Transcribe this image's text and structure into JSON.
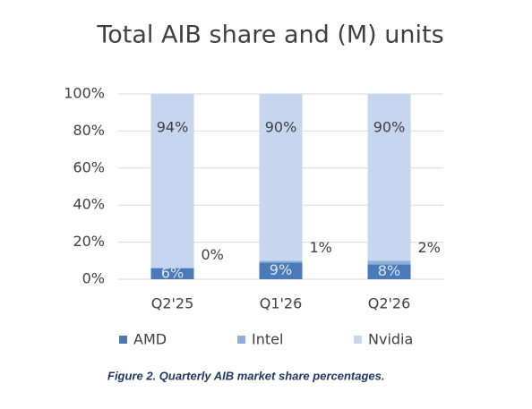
{
  "chart_data": {
    "type": "stacked_bar",
    "title": "Total AIB share and (M) units",
    "categories": [
      "Q2'25",
      "Q1'26",
      "Q2'26"
    ],
    "series": [
      {
        "name": "AMD",
        "color": "#4a7ab8",
        "values": [
          6,
          9,
          8
        ],
        "value_labels": [
          "6%",
          "9%",
          "8%"
        ]
      },
      {
        "name": "Intel",
        "color": "#8eb0dd",
        "values": [
          0,
          1,
          2
        ],
        "value_labels": [
          "0%",
          "1%",
          "2%"
        ]
      },
      {
        "name": "Nvidia",
        "color": "#c5d6ee",
        "values": [
          94,
          90,
          90
        ],
        "value_labels": [
          "94%",
          "90%",
          "90%"
        ]
      }
    ],
    "ylim": [
      0,
      100
    ],
    "yticks": [
      {
        "value": 0,
        "label": "0%"
      },
      {
        "value": 20,
        "label": "20%"
      },
      {
        "value": 40,
        "label": "40%"
      },
      {
        "value": 60,
        "label": "60%"
      },
      {
        "value": 80,
        "label": "80%"
      },
      {
        "value": 100,
        "label": "100%"
      }
    ],
    "grid": true,
    "legend": "bottom"
  },
  "caption": "Figure 2. Quarterly AIB market share percentages."
}
